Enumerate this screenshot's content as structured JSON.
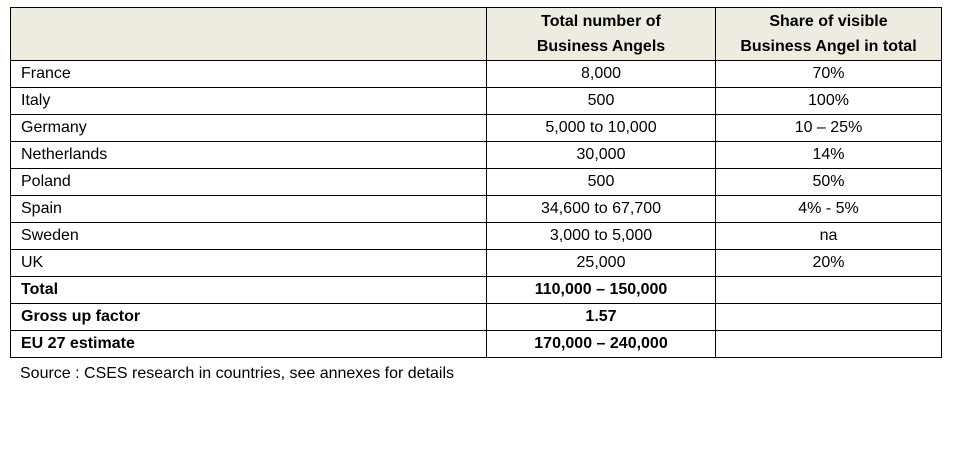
{
  "table": {
    "columns": [
      [
        "Total number of",
        "Business Angels"
      ],
      [
        "Share of visible",
        "Business Angel in total"
      ]
    ],
    "rows": [
      {
        "country": "France",
        "total": "8,000",
        "share": "70%"
      },
      {
        "country": "Italy",
        "total": "500",
        "share": "100%"
      },
      {
        "country": "Germany",
        "total": "5,000 to 10,000",
        "share": "10 – 25%"
      },
      {
        "country": "Netherlands",
        "total": "30,000",
        "share": "14%"
      },
      {
        "country": "Poland",
        "total": "500",
        "share": "50%"
      },
      {
        "country": "Spain",
        "total": "34,600 to 67,700",
        "share": "4% - 5%"
      },
      {
        "country": "Sweden",
        "total": "3,000 to 5,000",
        "share": "na"
      },
      {
        "country": "UK",
        "total": "25,000",
        "share": "20%"
      }
    ],
    "summary_rows": [
      {
        "country": "Total",
        "total": "110,000 – 150,000"
      },
      {
        "country": "Gross up factor",
        "total": "1.57"
      },
      {
        "country": "EU 27 estimate",
        "total": "170,000 – 240,000"
      }
    ]
  },
  "source": "Source : CSES research in countries, see annexes for details"
}
